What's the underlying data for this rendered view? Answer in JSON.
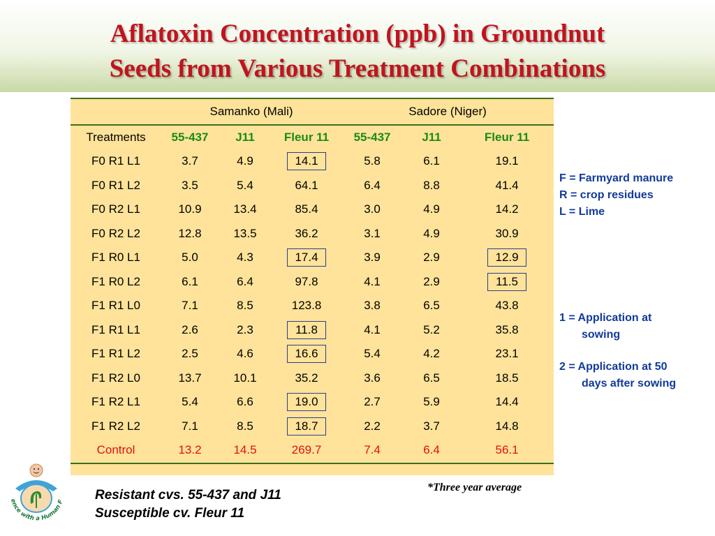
{
  "title": {
    "line1": "Aflatoxin Concentration (ppb) in Groundnut",
    "line2": "Seeds from Various Treatment Combinations"
  },
  "table": {
    "group_headers": [
      "Samanko (Mali)",
      "Sadore (Niger)"
    ],
    "column_headers": [
      "Treatments",
      "55-437",
      "J11",
      "Fleur 11",
      "55-437",
      "J11",
      "Fleur 11"
    ],
    "rows": [
      {
        "name": "F0 R1 L1",
        "values": [
          "3.7",
          "4.9",
          "14.1",
          "5.8",
          "6.1",
          "19.1"
        ]
      },
      {
        "name": "F0 R1 L2",
        "values": [
          "3.5",
          "5.4",
          "64.1",
          "6.4",
          "8.8",
          "41.4"
        ]
      },
      {
        "name": "F0 R2 L1",
        "values": [
          "10.9",
          "13.4",
          "85.4",
          "3.0",
          "4.9",
          "14.2"
        ]
      },
      {
        "name": "F0 R2 L2",
        "values": [
          "12.8",
          "13.5",
          "36.2",
          "3.1",
          "4.9",
          "30.9"
        ]
      },
      {
        "name": "F1 R0 L1",
        "values": [
          "5.0",
          "4.3",
          "17.4",
          "3.9",
          "2.9",
          "12.9"
        ]
      },
      {
        "name": "F1 R0 L2",
        "values": [
          "6.1",
          "6.4",
          "97.8",
          "4.1",
          "2.9",
          "11.5"
        ]
      },
      {
        "name": "F1 R1 L0",
        "values": [
          "7.1",
          "8.5",
          "123.8",
          "3.8",
          "6.5",
          "43.8"
        ]
      },
      {
        "name": "F1 R1 L1",
        "values": [
          "2.6",
          "2.3",
          "11.8",
          "4.1",
          "5.2",
          "35.8"
        ]
      },
      {
        "name": "F1 R1 L2",
        "values": [
          "2.5",
          "4.6",
          "16.6",
          "5.4",
          "4.2",
          "23.1"
        ]
      },
      {
        "name": "F1 R2 L0",
        "values": [
          "13.7",
          "10.1",
          "35.2",
          "3.6",
          "6.5",
          "18.5"
        ]
      },
      {
        "name": "F1 R2 L1",
        "values": [
          "5.4",
          "6.6",
          "19.0",
          "2.7",
          "5.9",
          "14.4"
        ]
      },
      {
        "name": "F1 R2 L2",
        "values": [
          "7.1",
          "8.5",
          "18.7",
          "2.2",
          "3.7",
          "14.8"
        ]
      },
      {
        "name": "Control",
        "values": [
          "13.2",
          "14.5",
          "269.7",
          "7.4",
          "6.4",
          "56.1"
        ]
      }
    ]
  },
  "legend": {
    "line1": "F = Farmyard manure",
    "line2": "R = crop residues",
    "line3": "L = Lime",
    "app1_a": "1 = Application at",
    "app1_b": "sowing",
    "app2_a": "2 = Application at 50",
    "app2_b": "days after sowing"
  },
  "footnote": "*Three year average",
  "resistance": {
    "line1": "Resistant cvs. 55-437 and J11",
    "line2": "Susceptible cv. Fleur 11"
  },
  "logo": {
    "text": "Science with a Human Face"
  },
  "colors": {
    "title": "#c0141e",
    "table_bg": "#ffe39a",
    "header_green": "#1a8a1a",
    "control_red": "#e01010",
    "legend_blue": "#123a9a"
  }
}
